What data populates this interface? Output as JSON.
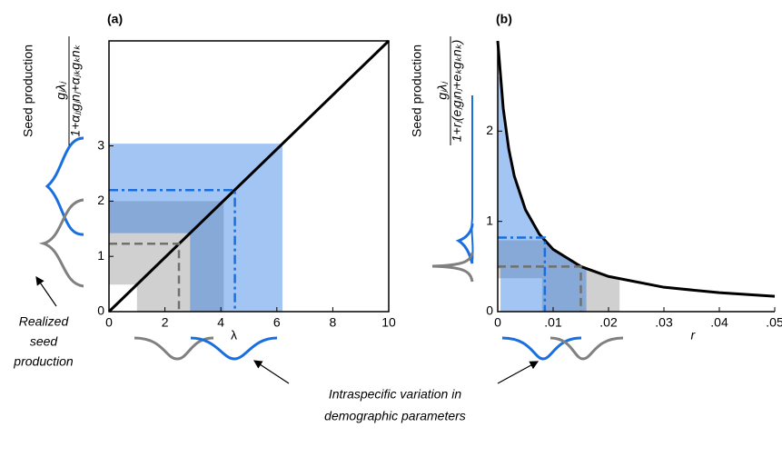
{
  "chart_data": [
    {
      "type": "line",
      "label": "(a)",
      "y_label": "Seed production",
      "formula_numerator": "gⱼλⱼ",
      "formula_denominator": "1+αⱼⱼgⱼnⱼ+αⱼₖgₖnₖ",
      "x_label": "λ",
      "x": [
        0,
        10
      ],
      "values": [
        0,
        4.9
      ],
      "color": "#000000",
      "xlim": [
        0,
        10
      ],
      "ylim": [
        0,
        4.9
      ],
      "xticks": [
        0,
        2,
        4,
        6,
        8,
        10
      ],
      "yticks": [
        0,
        1,
        2,
        3
      ],
      "box": true,
      "fill_under_curve": false,
      "ranges": [
        {
          "color": "#8a8a8a",
          "x": [
            1.0,
            4.1
          ],
          "y": [
            0.49,
            2.0
          ],
          "mean": [
            2.5,
            1.23
          ]
        },
        {
          "color": "#1a6fe0",
          "x": [
            2.9,
            6.2
          ],
          "y": [
            1.42,
            3.04
          ],
          "mean": [
            4.5,
            2.2
          ]
        }
      ]
    },
    {
      "type": "line",
      "label": "(b)",
      "y_label": "Seed production",
      "formula_numerator": "gⱼλⱼ",
      "formula_denominator": "1+rⱼ(eⱼgⱼnⱼ+eₖgₖnₖ)",
      "x_label": "r",
      "x": [
        0,
        0.001,
        0.002,
        0.003,
        0.005,
        0.0075,
        0.01,
        0.015,
        0.02,
        0.03,
        0.04,
        0.05
      ],
      "values": [
        3,
        2.25,
        1.8,
        1.5,
        1.13,
        0.86,
        0.69,
        0.5,
        0.39,
        0.27,
        0.21,
        0.17
      ],
      "color": "#000000",
      "xlim": [
        0,
        0.05
      ],
      "ylim": [
        0,
        3
      ],
      "xticks": [
        0,
        {
          "value": 0.01,
          "label": ".01"
        },
        {
          "value": 0.02,
          "label": ".02"
        },
        {
          "value": 0.03,
          "label": ".03"
        },
        {
          "value": 0.04,
          "label": ".04"
        },
        {
          "value": 0.05,
          "label": ".05"
        }
      ],
      "yticks": [
        0,
        1,
        2
      ],
      "box": false,
      "fill_under_curve": true,
      "ranges": [
        {
          "color": "#8a8a8a",
          "x": [
            0.008,
            0.022
          ],
          "y": [
            0.37,
            0.79
          ],
          "mean": [
            0.015,
            0.5
          ]
        },
        {
          "color": "#1a6fe0",
          "x": [
            0.0005,
            0.016
          ],
          "y": [
            0.48,
            2.6
          ],
          "mean": [
            0.0085,
            0.82
          ]
        }
      ]
    }
  ],
  "annotations": {
    "realized": [
      "Realized",
      "seed",
      "production"
    ],
    "variation": [
      "Intraspecific variation in",
      "demographic parameters"
    ]
  }
}
